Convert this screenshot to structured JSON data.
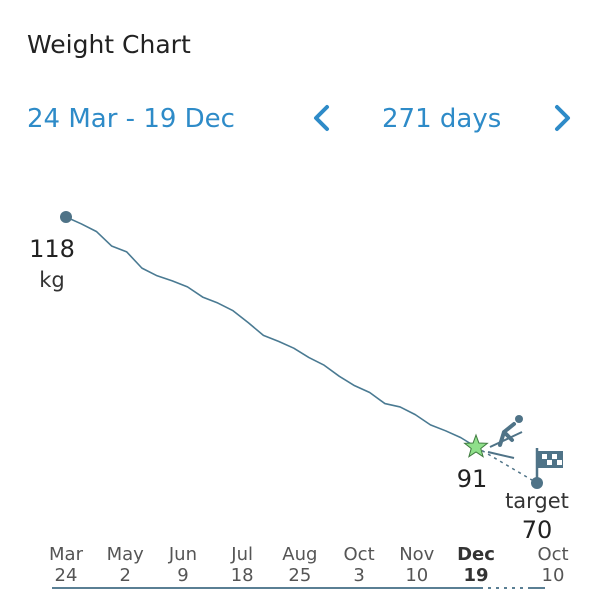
{
  "header": {
    "title": "Weight Chart",
    "range": "24 Mar - 19 Dec",
    "days": "271 days"
  },
  "chart_data": {
    "type": "line",
    "x": [
      0,
      10,
      20,
      30,
      40,
      50,
      60,
      70,
      80,
      90,
      100,
      110,
      120,
      130,
      140,
      150,
      160,
      170,
      180,
      190,
      200,
      210,
      220,
      230,
      240,
      250,
      260,
      270
    ],
    "values": [
      118,
      117.2,
      116.3,
      114.6,
      113.9,
      112,
      111.1,
      110.5,
      109.8,
      108.6,
      107.9,
      107,
      105.6,
      104.1,
      103.4,
      102.6,
      101.5,
      100.6,
      99.3,
      98.2,
      97.4,
      96.1,
      95.7,
      94.8,
      93.6,
      92.9,
      92.1,
      91
    ],
    "color": "#4a7a92",
    "unit": "kg",
    "xticks": [
      {
        "value": 0,
        "label": "Mar 24"
      },
      {
        "value": 39,
        "label": "May 2"
      },
      {
        "value": 77,
        "label": "Jun 9"
      },
      {
        "value": 116,
        "label": "Jul 18"
      },
      {
        "value": 154,
        "label": "Aug 25"
      },
      {
        "value": 193,
        "label": "Oct 3"
      },
      {
        "value": 231,
        "label": "Nov 10"
      },
      {
        "value": 270,
        "label": "Dec 19"
      }
    ],
    "target": {
      "label": "target",
      "value": 70,
      "date": "Oct 10"
    }
  }
}
